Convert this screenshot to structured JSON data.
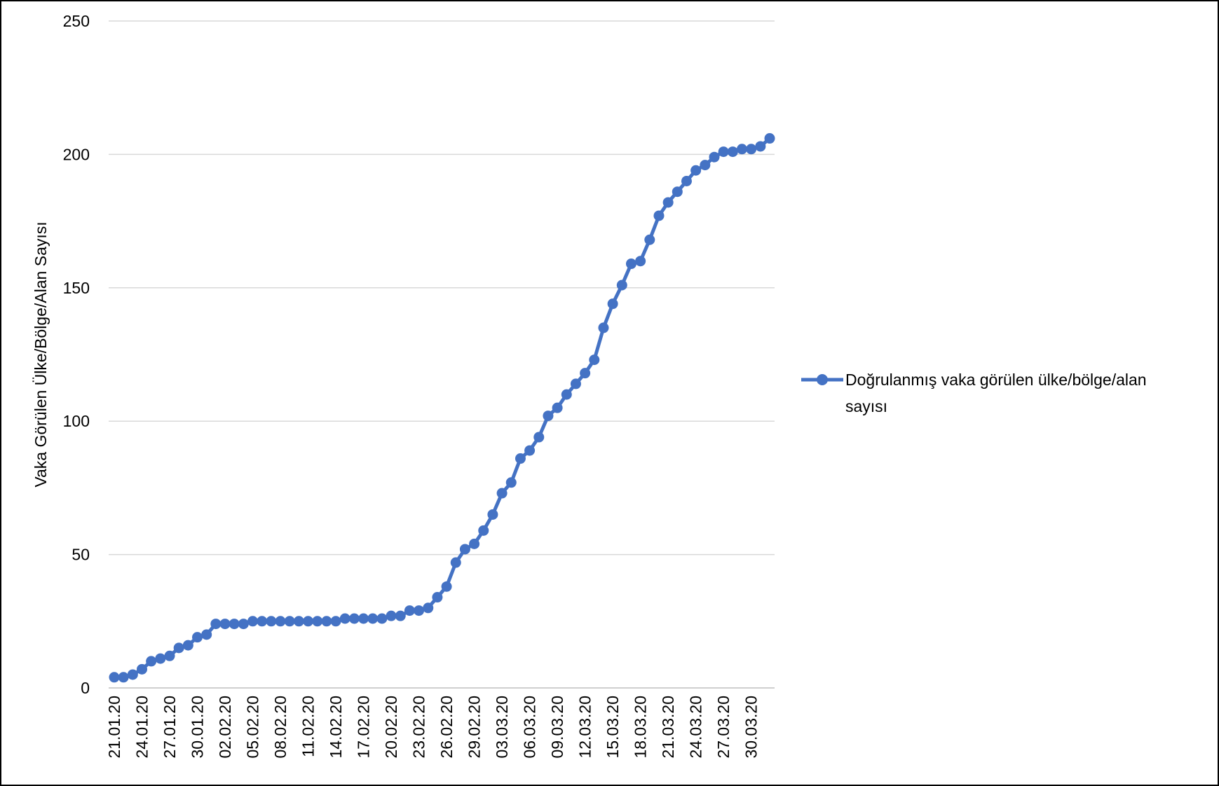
{
  "chart_data": {
    "type": "line",
    "title": "",
    "xlabel": "",
    "ylabel": "Vaka Görülen Ülke/Bölge/Alan Sayısı",
    "ylim": [
      0,
      250
    ],
    "yticks": [
      "0",
      "50",
      "100",
      "150",
      "200",
      "250"
    ],
    "grid": true,
    "legend_position": "right",
    "colors": {
      "series": "#4472C4",
      "grid": "#d9d9d9"
    },
    "x": [
      "21.01.20",
      "22.01.20",
      "23.01.20",
      "24.01.20",
      "25.01.20",
      "26.01.20",
      "27.01.20",
      "28.01.20",
      "29.01.20",
      "30.01.20",
      "31.01.20",
      "01.02.20",
      "02.02.20",
      "03.02.20",
      "04.02.20",
      "05.02.20",
      "06.02.20",
      "07.02.20",
      "08.02.20",
      "09.02.20",
      "10.02.20",
      "11.02.20",
      "12.02.20",
      "13.02.20",
      "14.02.20",
      "15.02.20",
      "16.02.20",
      "17.02.20",
      "18.02.20",
      "19.02.20",
      "20.02.20",
      "21.02.20",
      "22.02.20",
      "23.02.20",
      "24.02.20",
      "25.02.20",
      "26.02.20",
      "27.02.20",
      "28.02.20",
      "29.02.20",
      "01.03.20",
      "02.03.20",
      "03.03.20",
      "04.03.20",
      "05.03.20",
      "06.03.20",
      "07.03.20",
      "08.03.20",
      "09.03.20",
      "10.03.20",
      "11.03.20",
      "12.03.20",
      "13.03.20",
      "14.03.20",
      "15.03.20",
      "16.03.20",
      "17.03.20",
      "18.03.20",
      "19.03.20",
      "20.03.20",
      "21.03.20",
      "22.03.20",
      "23.03.20",
      "24.03.20",
      "25.03.20",
      "26.03.20",
      "27.03.20",
      "28.03.20",
      "29.03.20",
      "30.03.20",
      "31.03.20",
      "01.04.20"
    ],
    "x_tick_labels": [
      "21.01.20",
      "24.01.20",
      "27.01.20",
      "30.01.20",
      "02.02.20",
      "05.02.20",
      "08.02.20",
      "11.02.20",
      "14.02.20",
      "17.02.20",
      "20.02.20",
      "23.02.20",
      "26.02.20",
      "29.02.20",
      "03.03.20",
      "06.03.20",
      "09.03.20",
      "12.03.20",
      "15.03.20",
      "18.03.20",
      "21.03.20",
      "24.03.20",
      "27.03.20",
      "30.03.20"
    ],
    "series": [
      {
        "name": "Doğrulanmış vaka görülen ülke/bölge/alan sayısı",
        "values": [
          4,
          4,
          5,
          7,
          10,
          11,
          12,
          15,
          16,
          19,
          20,
          24,
          24,
          24,
          24,
          25,
          25,
          25,
          25,
          25,
          25,
          25,
          25,
          25,
          25,
          26,
          26,
          26,
          26,
          26,
          27,
          27,
          29,
          29,
          30,
          34,
          38,
          47,
          52,
          54,
          59,
          65,
          73,
          77,
          86,
          89,
          94,
          102,
          105,
          110,
          114,
          118,
          123,
          135,
          144,
          151,
          159,
          160,
          168,
          177,
          182,
          186,
          190,
          194,
          196,
          199,
          201,
          201,
          202,
          202,
          203,
          206
        ]
      }
    ],
    "legend": {
      "line1": "Doğrulanmış vaka görülen ülke/bölge/alan",
      "line2": "sayısı"
    }
  }
}
